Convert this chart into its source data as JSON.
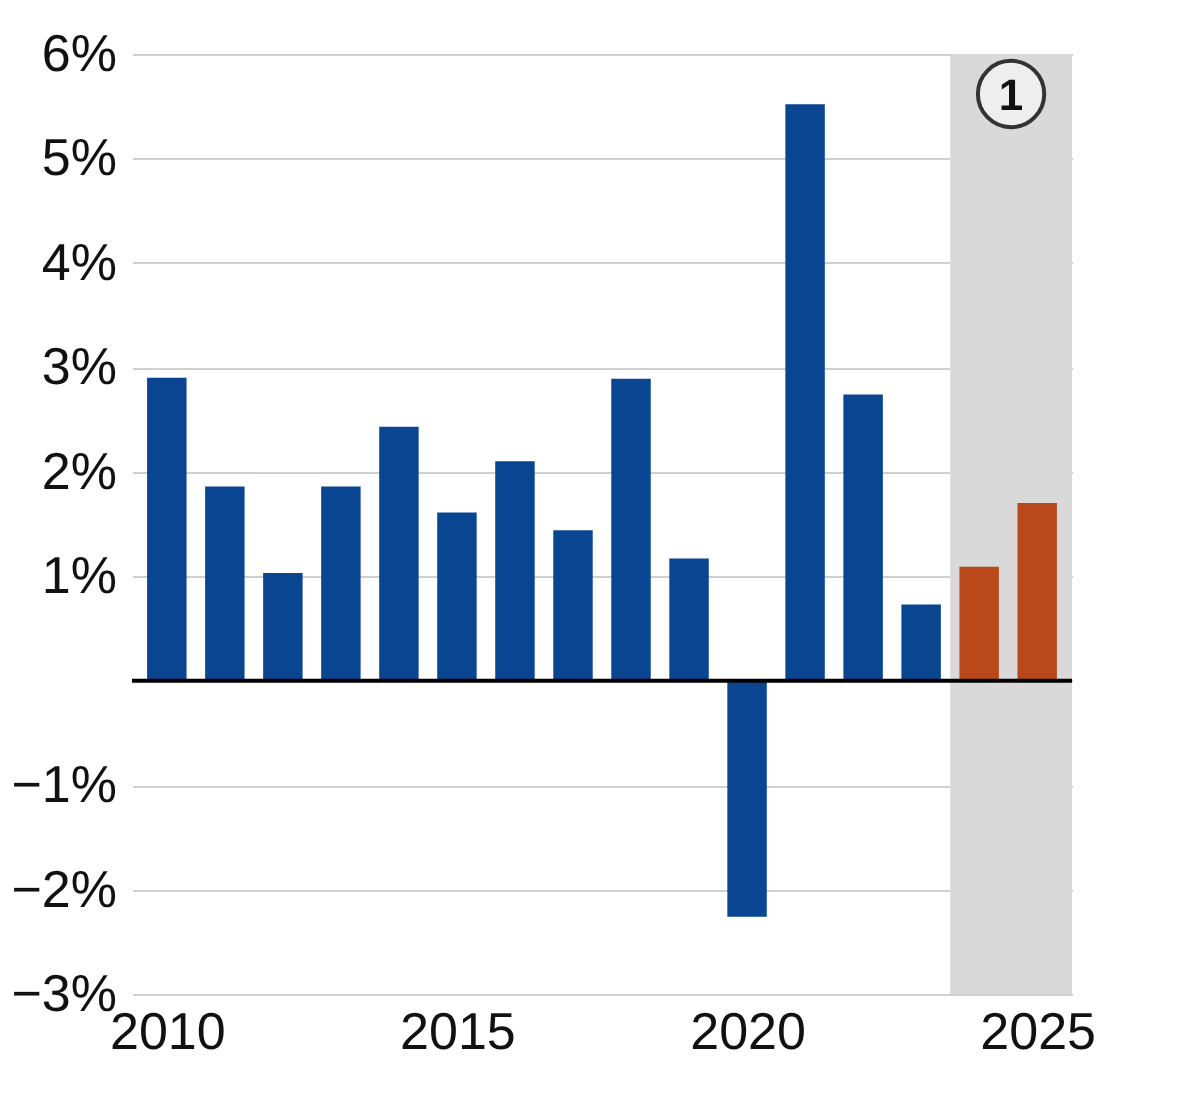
{
  "chart_data": {
    "type": "bar",
    "x": [
      2010,
      2011,
      2012,
      2013,
      2014,
      2015,
      2016,
      2017,
      2018,
      2019,
      2020,
      2021,
      2022,
      2023,
      2024,
      2025
    ],
    "values": [
      2.9,
      1.86,
      1.03,
      1.86,
      2.43,
      1.61,
      2.1,
      1.44,
      2.89,
      1.17,
      -2.26,
      5.52,
      2.74,
      0.73,
      1.09,
      1.7
    ],
    "colors": [
      "#0a4591",
      "#0a4591",
      "#0a4591",
      "#0a4591",
      "#0a4591",
      "#0a4591",
      "#0a4591",
      "#0a4591",
      "#0a4591",
      "#0a4591",
      "#0a4591",
      "#0a4591",
      "#0a4591",
      "#0a4591",
      "#b9491a",
      "#b9491a"
    ],
    "xlim": [
      2009.4,
      2025.6
    ],
    "xticks": [
      2010,
      2015,
      2020,
      2025
    ],
    "ylim": [
      -3,
      6
    ],
    "yticks": [
      {
        "value": 6,
        "label": "6%"
      },
      {
        "value": 5,
        "label": "5%"
      },
      {
        "value": 4,
        "label": "4%"
      },
      {
        "value": 3,
        "label": "3%"
      },
      {
        "value": 2,
        "label": "2%"
      },
      {
        "value": 1,
        "label": "1%"
      },
      {
        "value": 0,
        "label": null
      },
      {
        "value": -1,
        "label": "−1%"
      },
      {
        "value": -2,
        "label": "−2%"
      },
      {
        "value": -3,
        "label": "−3%"
      }
    ],
    "grid": "y",
    "ref_lines": [
      {
        "axis": "y",
        "value": 0,
        "color": "#000000"
      }
    ],
    "bands": [
      {
        "axis": "x",
        "from": 2023.5,
        "to": 2025.6,
        "label": "1",
        "color": "#d9d9d9"
      }
    ]
  }
}
